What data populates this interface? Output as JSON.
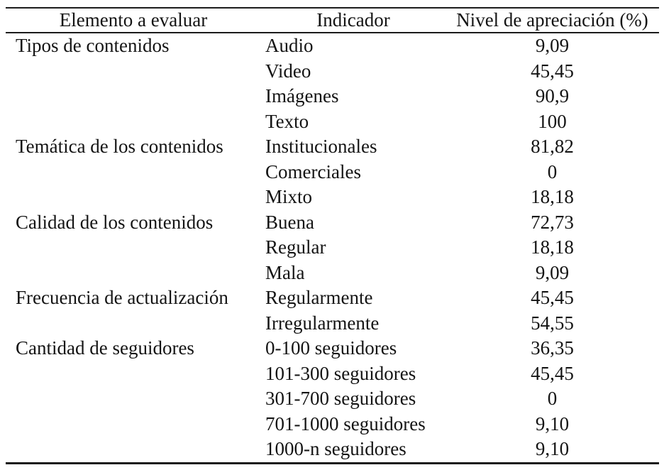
{
  "table": {
    "columns": [
      "Elemento a evaluar",
      "Indicador",
      "Nivel de apreciación (%)"
    ],
    "groups": [
      {
        "element": "Tipos de contenidos",
        "rows": [
          {
            "indicator": "Audio",
            "value": "9,09"
          },
          {
            "indicator": "Video",
            "value": "45,45"
          },
          {
            "indicator": "Imágenes",
            "value": "90,9"
          },
          {
            "indicator": "Texto",
            "value": "100"
          }
        ]
      },
      {
        "element": "Temática de los contenidos",
        "rows": [
          {
            "indicator": "Institucionales",
            "value": "81,82"
          },
          {
            "indicator": "Comerciales",
            "value": "0"
          },
          {
            "indicator": "Mixto",
            "value": "18,18"
          }
        ]
      },
      {
        "element": "Calidad de los contenidos",
        "rows": [
          {
            "indicator": "Buena",
            "value": "72,73"
          },
          {
            "indicator": "Regular",
            "value": "18,18"
          },
          {
            "indicator": "Mala",
            "value": "9,09"
          }
        ]
      },
      {
        "element": "Frecuencia de actualización",
        "rows": [
          {
            "indicator": "Regularmente",
            "value": "45,45"
          },
          {
            "indicator": "Irregularmente",
            "value": "54,55"
          }
        ]
      },
      {
        "element": "Cantidad de seguidores",
        "rows": [
          {
            "indicator": "0-100 seguidores",
            "value": "36,35"
          },
          {
            "indicator": "101-300 seguidores",
            "value": "45,45"
          },
          {
            "indicator": "301-700 seguidores",
            "value": "0"
          },
          {
            "indicator": "701-1000 seguidores",
            "value": "9,10"
          },
          {
            "indicator": "1000-n seguidores",
            "value": "9,10"
          }
        ]
      }
    ]
  },
  "chart_data": {
    "type": "table",
    "title": "",
    "columns": [
      "Elemento a evaluar",
      "Indicador",
      "Nivel de apreciación (%)"
    ],
    "rows": [
      [
        "Tipos de contenidos",
        "Audio",
        "9,09"
      ],
      [
        "",
        "Video",
        "45,45"
      ],
      [
        "",
        "Imágenes",
        "90,9"
      ],
      [
        "",
        "Texto",
        "100"
      ],
      [
        "Temática de los contenidos",
        "Institucionales",
        "81,82"
      ],
      [
        "",
        "Comerciales",
        "0"
      ],
      [
        "",
        "Mixto",
        "18,18"
      ],
      [
        "Calidad de los contenidos",
        "Buena",
        "72,73"
      ],
      [
        "",
        "Regular",
        "18,18"
      ],
      [
        "",
        "Mala",
        "9,09"
      ],
      [
        "Frecuencia de actualización",
        "Regularmente",
        "45,45"
      ],
      [
        "",
        "Irregularmente",
        "54,55"
      ],
      [
        "Cantidad de seguidores",
        "0-100 seguidores",
        "36,35"
      ],
      [
        "",
        "101-300 seguidores",
        "45,45"
      ],
      [
        "",
        "301-700 seguidores",
        "0"
      ],
      [
        "",
        "701-1000 seguidores",
        "9,10"
      ],
      [
        "",
        "1000-n seguidores",
        "9,10"
      ]
    ]
  }
}
